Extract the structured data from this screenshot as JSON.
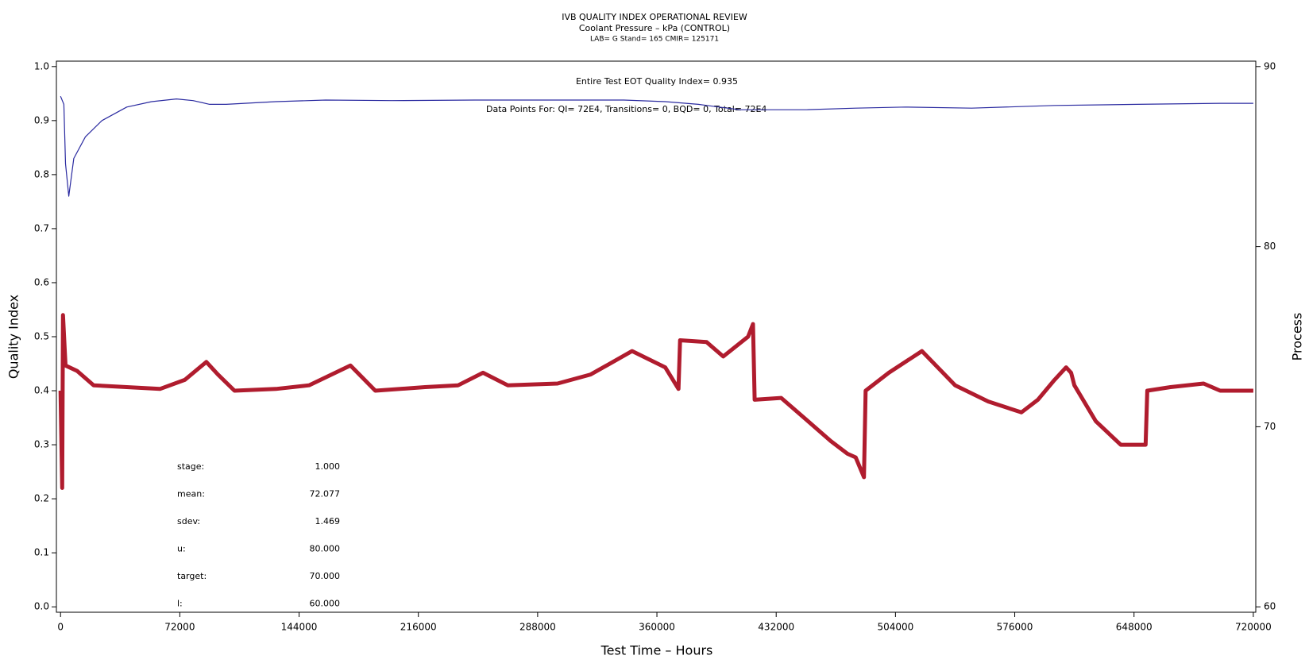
{
  "chart_data": {
    "type": "line",
    "title": "IVB QUALITY INDEX OPERATIONAL REVIEW",
    "subtitle": "Coolant Pressure – kPa (CONTROL)",
    "subtitle2": "LAB= G Stand= 165 CMIR= 125171",
    "x_label": "Test Time – Hours",
    "y_label": "Quality Index",
    "y2_label": "Process",
    "annotations": [
      "Entire Test EOT Quality Index=   0.935",
      "Data Points For: QI=  72E4, Transitions=     0, BQD=     0, Total=  72E4"
    ],
    "stats": [
      {
        "label": "stage:",
        "value": "1.000"
      },
      {
        "label": "mean:",
        "value": "72.077"
      },
      {
        "label": "sdev:",
        "value": "1.469"
      },
      {
        "label": "u:",
        "value": "80.000"
      },
      {
        "label": "target:",
        "value": "70.000"
      },
      {
        "label": "l:",
        "value": "60.000"
      }
    ],
    "xlim": [
      -2500,
      721500
    ],
    "xticks": [
      0,
      72000,
      144000,
      216000,
      288000,
      360000,
      432000,
      504000,
      576000,
      648000,
      720000
    ],
    "ylim": [
      -0.01,
      1.01
    ],
    "yticks": [
      {
        "value": 0,
        "label": "0.0"
      },
      0.1,
      0.2,
      0.3,
      0.4,
      0.5,
      0.6,
      0.7,
      0.8,
      0.9,
      {
        "value": 1,
        "label": "1.0"
      }
    ],
    "y2lim": [
      59.7,
      90.3
    ],
    "y2ticks": [
      60,
      70,
      80,
      90
    ],
    "series": [
      {
        "name": "Quality Index",
        "color": "#2a2aa0",
        "x": [
          0,
          2000,
          3000,
          5000,
          8000,
          15000,
          25000,
          40000,
          55000,
          70000,
          80000,
          90000,
          100000,
          130000,
          160000,
          200000,
          250000,
          300000,
          340000,
          365000,
          385000,
          410000,
          420000,
          450000,
          480000,
          510000,
          550000,
          600000,
          650000,
          700000,
          720000
        ],
        "values": [
          0.945,
          0.93,
          0.82,
          0.76,
          0.83,
          0.87,
          0.9,
          0.925,
          0.935,
          0.94,
          0.937,
          0.93,
          0.93,
          0.935,
          0.938,
          0.937,
          0.938,
          0.938,
          0.938,
          0.935,
          0.93,
          0.92,
          0.92,
          0.92,
          0.923,
          0.925,
          0.923,
          0.928,
          0.93,
          0.932,
          0.932
        ]
      },
      {
        "name": "Process",
        "color": "#b01c2e",
        "axis": "y2",
        "x": [
          0,
          1000,
          1500,
          3000,
          10000,
          20000,
          40000,
          60000,
          75000,
          88000,
          95000,
          105000,
          130000,
          150000,
          175000,
          190000,
          220000,
          240000,
          255000,
          270000,
          300000,
          320000,
          345000,
          365000,
          373000,
          374000,
          390000,
          400000,
          415000,
          418000,
          419000,
          435000,
          450000,
          465000,
          475000,
          480000,
          485000,
          486000,
          500000,
          520000,
          540000,
          560000,
          580000,
          590000,
          600000,
          607000,
          610000,
          612000,
          625000,
          640000,
          655000,
          656000,
          670000,
          690000,
          700000,
          720000
        ],
        "values": [
          72,
          66.6,
          76.2,
          73.4,
          73.1,
          72.3,
          72.2,
          72.1,
          72.6,
          73.6,
          72.9,
          72,
          72.1,
          72.3,
          73.4,
          72,
          72.2,
          72.3,
          73,
          72.3,
          72.4,
          72.9,
          74.2,
          73.3,
          72.1,
          74.8,
          74.7,
          73.9,
          75,
          75.7,
          71.5,
          71.6,
          70.4,
          69.2,
          68.5,
          68.3,
          67.2,
          72,
          73,
          74.2,
          72.3,
          71.4,
          70.8,
          71.5,
          72.6,
          73.3,
          73,
          72.3,
          70.3,
          69,
          69,
          72,
          72.2,
          72.4,
          72,
          72
        ]
      }
    ]
  }
}
